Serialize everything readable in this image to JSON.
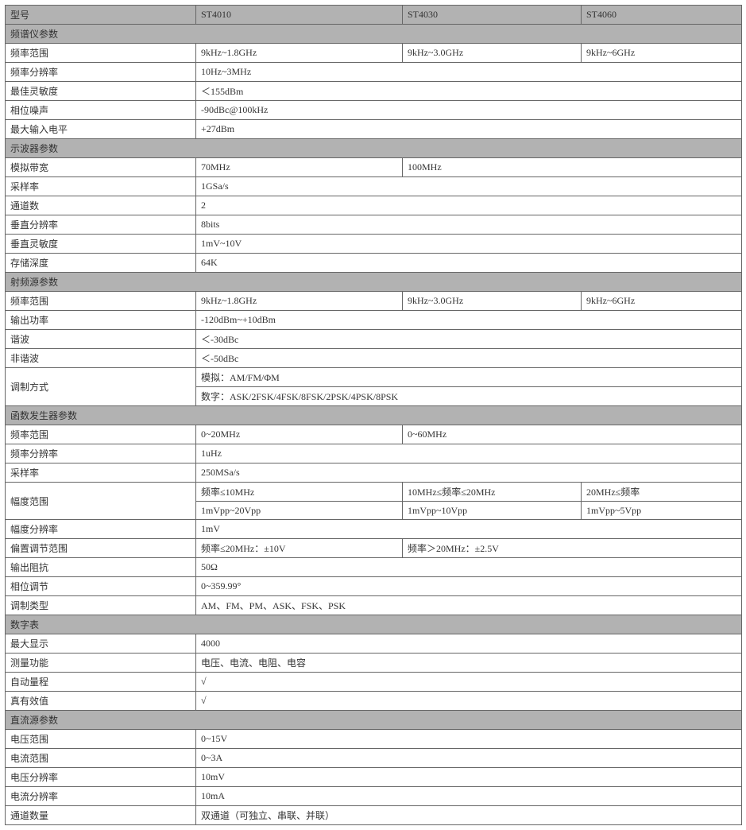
{
  "colors": {
    "header_bg": "#b2b2b2",
    "border": "#666666",
    "text": "#333333",
    "bg": "#ffffff"
  },
  "header": {
    "label": "型号",
    "m1": "ST4010",
    "m2": "ST4030",
    "m3": "ST4060"
  },
  "sect1": "频谱仪参数",
  "s1r1": {
    "l": "频率范围",
    "v1": "9kHz~1.8GHz",
    "v2": "9kHz~3.0GHz",
    "v3": "9kHz~6GHz"
  },
  "s1r2": {
    "l": "频率分辨率",
    "v": "10Hz~3MHz"
  },
  "s1r3": {
    "l": "最佳灵敏度",
    "v": "＜155dBm"
  },
  "s1r4": {
    "l": "相位噪声",
    "v": "-90dBc@100kHz"
  },
  "s1r5": {
    "l": "最大输入电平",
    "v": "+27dBm"
  },
  "sect2": "示波器参数",
  "s2r1": {
    "l": "模拟带宽",
    "v1": "70MHz",
    "v2": "100MHz"
  },
  "s2r2": {
    "l": "采样率",
    "v": "1GSa/s"
  },
  "s2r3": {
    "l": "通道数",
    "v": "2"
  },
  "s2r4": {
    "l": "垂直分辨率",
    "v": "8bits"
  },
  "s2r5": {
    "l": "垂直灵敏度",
    "v": "1mV~10V"
  },
  "s2r6": {
    "l": "存储深度",
    "v": "64K"
  },
  "sect3": "射频源参数",
  "s3r1": {
    "l": "频率范围",
    "v1": "9kHz~1.8GHz",
    "v2": "9kHz~3.0GHz",
    "v3": "9kHz~6GHz"
  },
  "s3r2": {
    "l": "输出功率",
    "v": "-120dBm~+10dBm"
  },
  "s3r3": {
    "l": "谐波",
    "v": "＜-30dBc"
  },
  "s3r4": {
    "l": "非谐波",
    "v": "＜-50dBc"
  },
  "s3r5": {
    "l": "调制方式",
    "v1": "模拟：AM/FM/ΦM",
    "v2": "数字：ASK/2FSK/4FSK/8FSK/2PSK/4PSK/8PSK"
  },
  "sect4": "函数发生器参数",
  "s4r1": {
    "l": "频率范围",
    "v1": "0~20MHz",
    "v2": "0~60MHz"
  },
  "s4r2": {
    "l": "频率分辨率",
    "v": "1uHz"
  },
  "s4r3": {
    "l": "采样率",
    "v": "250MSa/s"
  },
  "s4r4": {
    "l": "幅度范围",
    "h1": "频率≤10MHz",
    "h2": "10MHz≤频率≤20MHz",
    "h3": "20MHz≤频率",
    "v1": "1mVpp~20Vpp",
    "v2": "1mVpp~10Vpp",
    "v3": "1mVpp~5Vpp"
  },
  "s4r5": {
    "l": "幅度分辨率",
    "v": "1mV"
  },
  "s4r6": {
    "l": "偏置调节范围",
    "v1": "频率≤20MHz：±10V",
    "v2": "频率＞20MHz：±2.5V"
  },
  "s4r7": {
    "l": "输出阻抗",
    "v": "50Ω"
  },
  "s4r8": {
    "l": "相位调节",
    "v": "0~359.99°"
  },
  "s4r9": {
    "l": "调制类型",
    "v": "AM、FM、PM、ASK、FSK、PSK"
  },
  "sect5": "数字表",
  "s5r1": {
    "l": "最大显示",
    "v": "4000"
  },
  "s5r2": {
    "l": "测量功能",
    "v": "电压、电流、电阻、电容"
  },
  "s5r3": {
    "l": "自动量程",
    "v": "√"
  },
  "s5r4": {
    "l": "真有效值",
    "v": "√"
  },
  "sect6": "直流源参数",
  "s6r1": {
    "l": "电压范围",
    "v": "0~15V"
  },
  "s6r2": {
    "l": "电流范围",
    "v": "0~3A"
  },
  "s6r3": {
    "l": "电压分辨率",
    "v": "10mV"
  },
  "s6r4": {
    "l": "电流分辨率",
    "v": "10mA"
  },
  "s6r5": {
    "l": "通道数量",
    "v": "双通道（可独立、串联、并联）"
  }
}
